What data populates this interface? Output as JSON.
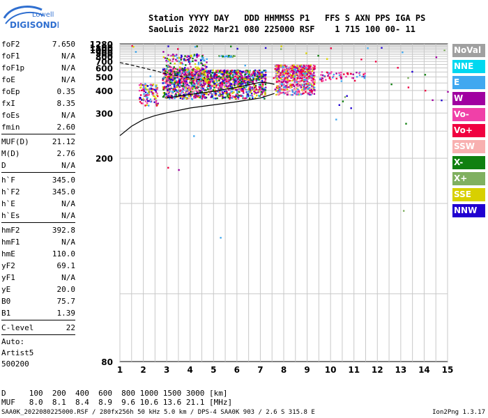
{
  "logo": {
    "line1": "Lowell",
    "line2": "DIGISONDE"
  },
  "header": {
    "labels": "Station YYYY DAY   DDD HHMMSS P1   FFS S AXN PPS IGA PS",
    "values": "SaoLuis 2022 Mar21 080 225000 RSF    1 715 100 00- 11"
  },
  "params": [
    {
      "name": "foF2",
      "value": "7.650"
    },
    {
      "name": "foF1",
      "value": "N/A"
    },
    {
      "name": "foF1p",
      "value": "N/A"
    },
    {
      "name": "foE",
      "value": "N/A"
    },
    {
      "name": "foEp",
      "value": "0.35"
    },
    {
      "name": "fxI",
      "value": "8.35"
    },
    {
      "name": "foEs",
      "value": "N/A"
    },
    {
      "name": "fmin",
      "value": "2.60"
    },
    {
      "sep": true
    },
    {
      "name": "MUF(D)",
      "value": "21.12"
    },
    {
      "name": "M(D)",
      "value": "2.76"
    },
    {
      "name": "D",
      "value": "N/A"
    },
    {
      "sep": true
    },
    {
      "name": "h`F",
      "value": "345.0"
    },
    {
      "name": "h`F2",
      "value": "345.0"
    },
    {
      "name": "h`E",
      "value": "N/A"
    },
    {
      "name": "h`Es",
      "value": "N/A"
    },
    {
      "sep": true
    },
    {
      "name": "hmF2",
      "value": "392.8"
    },
    {
      "name": "hmF1",
      "value": "N/A"
    },
    {
      "name": "hmE",
      "value": "110.0"
    },
    {
      "name": "yF2",
      "value": "69.1"
    },
    {
      "name": "yF1",
      "value": "N/A"
    },
    {
      "name": "yE",
      "value": "20.0"
    },
    {
      "name": "B0",
      "value": "75.7"
    },
    {
      "name": "B1",
      "value": "1.39"
    },
    {
      "sep": true
    },
    {
      "name": "C-level",
      "value": "22"
    },
    {
      "sep": true
    }
  ],
  "auto": {
    "label": "Auto:",
    "name": "Artist5",
    "version": "500200"
  },
  "legend": [
    {
      "label": "NoVal",
      "color": "#a0a0a0"
    },
    {
      "label": "NNE",
      "color": "#00d8f0"
    },
    {
      "label": "E",
      "color": "#40a8f0"
    },
    {
      "label": "W",
      "color": "#a000a0"
    },
    {
      "label": "Vo-",
      "color": "#f040a8"
    },
    {
      "label": "Vo+",
      "color": "#f00040"
    },
    {
      "label": "SSW",
      "color": "#f8b0b0"
    },
    {
      "label": "X-",
      "color": "#108010"
    },
    {
      "label": "X+",
      "color": "#80b060"
    },
    {
      "label": "SSE",
      "color": "#d8d000"
    },
    {
      "label": "NNW",
      "color": "#2000d0"
    }
  ],
  "footer": {
    "d_row": "D     100  200  400  600  800 1000 1500 3000 [km]",
    "muf_row": "MUF   8.0  8.1  8.4  8.9  9.6 10.6 13.6 21.1 [MHz]",
    "file": "SAA0K_2022080225000.RSF / 280fx256h 50 kHz 5.0 km / DPS-4 SAA0K 903 / 2.6 S 315.8 E",
    "version": "Ion2Png 1.3.17"
  },
  "chart_data": {
    "type": "scatter",
    "xlim": [
      1,
      15
    ],
    "ylim": [
      80,
      1280
    ],
    "y_scale": "reciprocal",
    "x_ticks": [
      1,
      2,
      3,
      4,
      5,
      6,
      7,
      8,
      9,
      10,
      11,
      12,
      13,
      14,
      15
    ],
    "y_ticks": [
      80,
      200,
      300,
      400,
      500,
      600,
      700,
      800,
      900,
      1000,
      1100,
      1280
    ],
    "grid": true,
    "trace_lines": [
      {
        "name": "",
        "style": "solid",
        "points": [
          [
            1,
            240
          ],
          [
            1.5,
            262
          ],
          [
            2,
            280
          ],
          [
            2.5,
            292
          ],
          [
            3,
            301
          ],
          [
            4,
            318
          ],
          [
            5,
            330
          ],
          [
            6,
            343
          ],
          [
            7,
            360
          ],
          [
            7.6,
            383
          ]
        ]
      },
      {
        "name": "",
        "style": "solid",
        "points": [
          [
            3,
            360
          ],
          [
            4,
            378
          ],
          [
            5,
            395
          ],
          [
            6,
            420
          ],
          [
            6.6,
            440
          ],
          [
            7,
            455
          ],
          [
            7.4,
            448
          ],
          [
            7.6,
            440
          ]
        ]
      },
      {
        "name": "",
        "style": "dashed",
        "points": [
          [
            1,
            680
          ],
          [
            1.5,
            640
          ],
          [
            2,
            600
          ],
          [
            2.5,
            565
          ],
          [
            3,
            530
          ],
          [
            3.5,
            510
          ],
          [
            4,
            490
          ],
          [
            4.6,
            470
          ]
        ]
      }
    ],
    "clusters": [
      {
        "f": [
          1.8,
          2.6
        ],
        "h": [
          330,
          450
        ],
        "density": 110,
        "palette": [
          "#f00040",
          "#f040a8",
          "#a000a0",
          "#2000d0",
          "#d8d000",
          "#40a8f0"
        ]
      },
      {
        "f": [
          2.8,
          4.6
        ],
        "h": [
          360,
          600
        ],
        "density": 900,
        "palette": [
          "#a000a0",
          "#f00040",
          "#f040a8",
          "#2000d0",
          "#d8d000",
          "#108010",
          "#40a8f0",
          "#f8b0b0"
        ]
      },
      {
        "f": [
          2.9,
          4.7
        ],
        "h": [
          600,
          880
        ],
        "density": 120,
        "palette": [
          "#a000a0",
          "#f040a8",
          "#108010",
          "#2000d0",
          "#40a8f0",
          "#d8d000"
        ]
      },
      {
        "f": [
          4.6,
          7.2
        ],
        "h": [
          360,
          580
        ],
        "density": 900,
        "palette": [
          "#a000a0",
          "#f00040",
          "#f040a8",
          "#d8d000",
          "#2000d0",
          "#108010",
          "#40a8f0"
        ]
      },
      {
        "f": [
          7.6,
          9.3
        ],
        "h": [
          380,
          650
        ],
        "density": 700,
        "palette": [
          "#f00040",
          "#f040a8",
          "#a000a0",
          "#f8b0b0",
          "#d8d000",
          "#40a8f0"
        ]
      },
      {
        "f": [
          9.5,
          11.6
        ],
        "h": [
          470,
          560
        ],
        "density": 60,
        "palette": [
          "#f00040",
          "#f040a8",
          "#a000a0",
          "#40a8f0"
        ]
      },
      {
        "f": [
          5.2,
          5.9
        ],
        "h": [
          810,
          840
        ],
        "density": 25,
        "palette": [
          "#40a8f0",
          "#108010",
          "#80b060"
        ]
      },
      {
        "f": [
          1.0,
          15.0
        ],
        "h": [
          100,
          1270
        ],
        "density": 60,
        "palette": [
          "#a000a0",
          "#40a8f0",
          "#f00040",
          "#108010",
          "#d8d000",
          "#2000d0",
          "#80b060"
        ]
      }
    ]
  }
}
